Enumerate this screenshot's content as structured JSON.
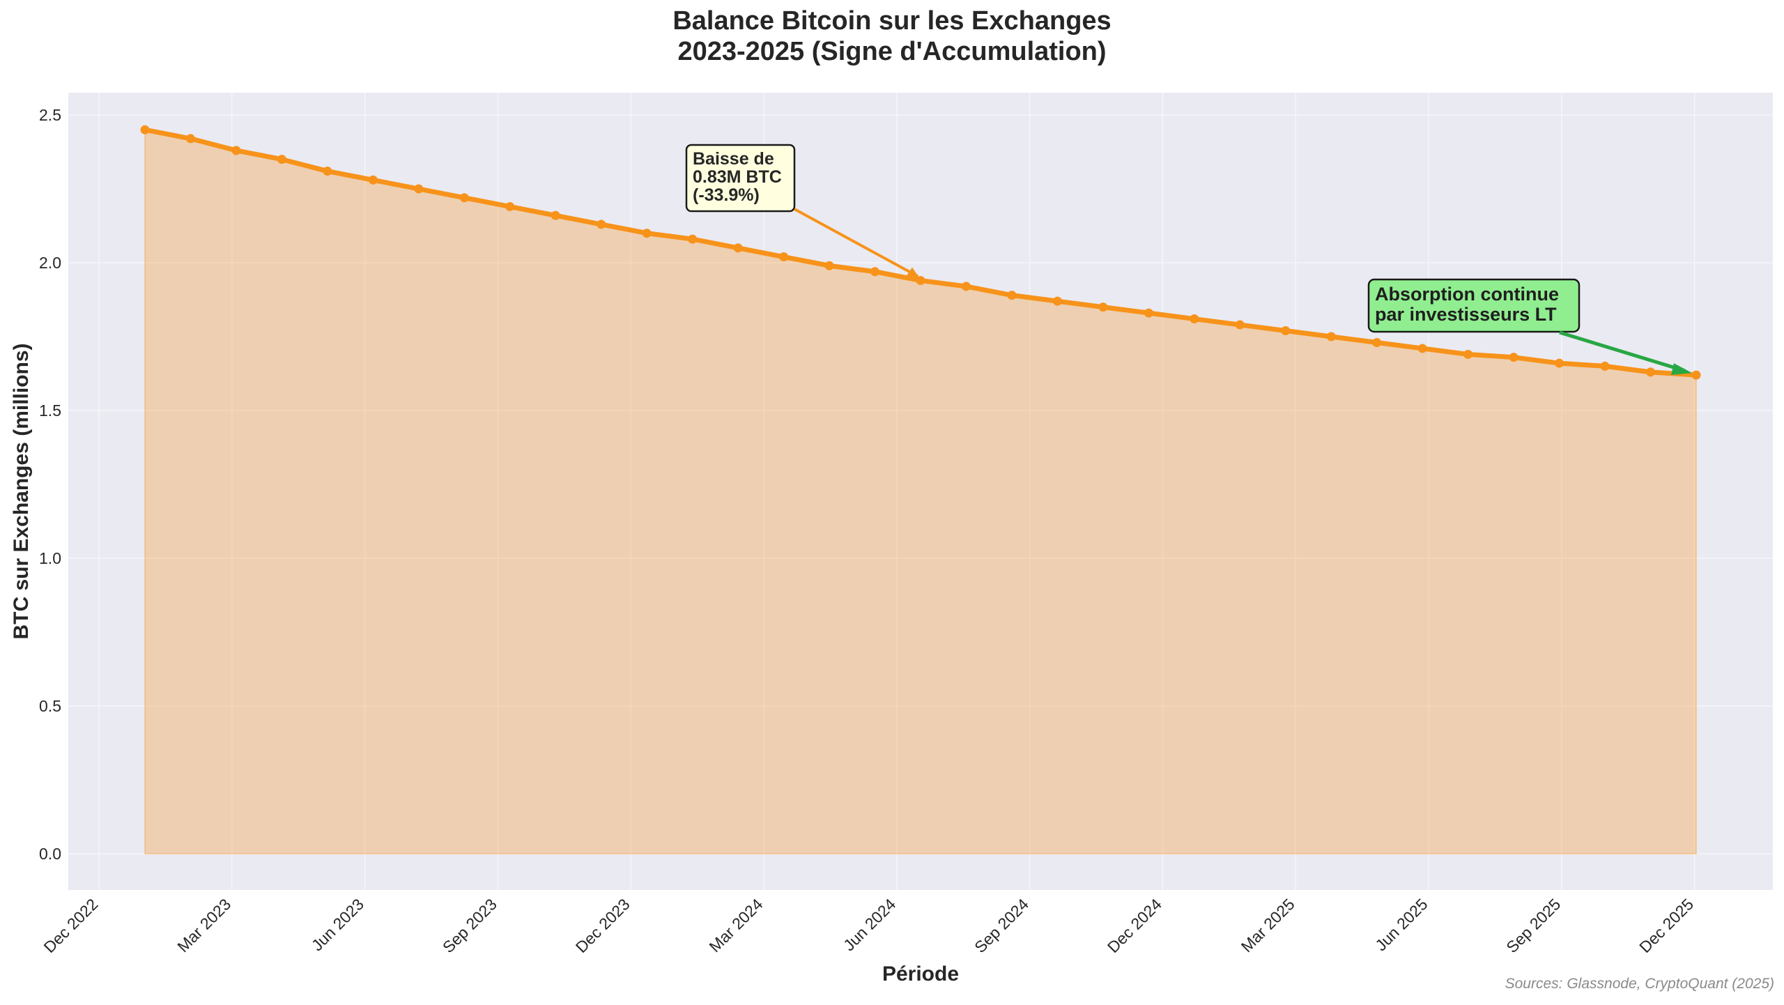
{
  "title": {
    "line1": "Balance Bitcoin sur les Exchanges",
    "line2": "2023-2025 (Signe d'Accumulation)"
  },
  "source_note": "Sources: Glassnode, CryptoQuant (2025)",
  "colors": {
    "line": "#F7931A",
    "fill": "#F7931A",
    "plot_bg": "#EAEAF2",
    "grid": "#F5F5FA",
    "annotation1_bg": "#FFFFE0",
    "annotation2_bg": "#90EE90",
    "annotation2_arrow": "#28A745"
  },
  "chart_data": {
    "type": "area",
    "title": "Balance Bitcoin sur les Exchanges 2023-2025 (Signe d'Accumulation)",
    "xlabel": "Période",
    "ylabel": "BTC sur Exchanges (millions)",
    "ylim": [
      -0.12,
      2.58
    ],
    "yticks": [
      0.0,
      0.5,
      1.0,
      1.5,
      2.0,
      2.5
    ],
    "ytick_labels": [
      "0.0",
      "0.5",
      "1.0",
      "1.5",
      "2.0",
      "2.5"
    ],
    "xtick_labels": [
      "Dec 2022",
      "Mar 2023",
      "Jun 2023",
      "Sep 2023",
      "Dec 2023",
      "Mar 2024",
      "Jun 2024",
      "Sep 2024",
      "Dec 2024",
      "Mar 2025",
      "Jun 2025",
      "Sep 2025",
      "Dec 2025"
    ],
    "grid": true,
    "legend": null,
    "series": [
      {
        "name": "BTC sur Exchanges",
        "values": [
          2.45,
          2.42,
          2.38,
          2.35,
          2.31,
          2.28,
          2.25,
          2.22,
          2.19,
          2.16,
          2.13,
          2.1,
          2.08,
          2.05,
          2.02,
          1.99,
          1.97,
          1.94,
          1.92,
          1.89,
          1.87,
          1.85,
          1.83,
          1.81,
          1.79,
          1.77,
          1.75,
          1.73,
          1.71,
          1.69,
          1.68,
          1.66,
          1.65,
          1.63,
          1.62
        ]
      }
    ],
    "annotations": [
      {
        "text": [
          "Baisse de",
          "0.83M BTC",
          "(-33.9%)"
        ],
        "point_index": 17,
        "style": "yellow-box-orange-arrow"
      },
      {
        "text": [
          "Absorption continue",
          "par investisseurs LT"
        ],
        "point_index": 34,
        "style": "green-box-green-arrow"
      }
    ]
  }
}
